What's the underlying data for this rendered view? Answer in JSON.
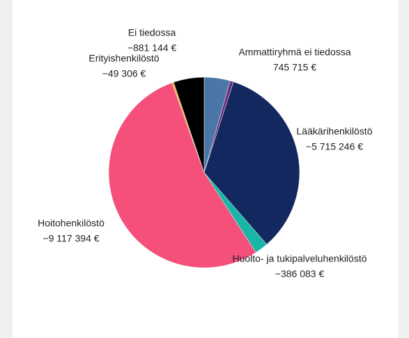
{
  "chart_data": {
    "type": "pie",
    "categories": [
      "Ammattiryhmä ei tiedossa",
      null,
      "Lääkärihenkilöstö",
      "Huolto- ja tukipalveluhenkilöstö",
      "Hoitohenkilöstö",
      "Erityishenkilöstö",
      "Ei tiedossa"
    ],
    "values": [
      745715,
      100000,
      -5715246,
      -386083,
      -9117394,
      -49306,
      -881144
    ],
    "value_labels": [
      "745 715 €",
      null,
      "−5 715 246 €",
      "−386 083 €",
      "−9 117 394 €",
      "−49 306 €",
      "−881 144 €"
    ],
    "colors": [
      "#4a76a8",
      "#6b2d7a",
      "#13285e",
      "#1bb5a8",
      "#f4507a",
      "#f5a623",
      "#000000"
    ]
  }
}
